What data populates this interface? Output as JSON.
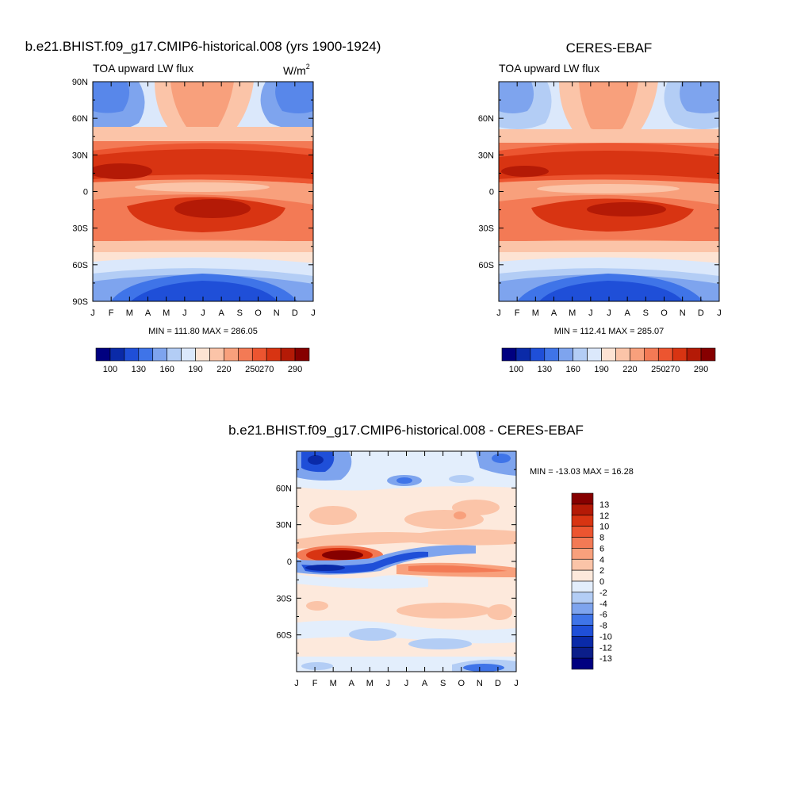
{
  "chart_data": [
    {
      "type": "heatmap",
      "title": "b.e21.BHIST.f09_g17.CMIP6-historical.008 (yrs 1900-1924)",
      "subtitle_left": "TOA upward LW flux",
      "units": "W/m",
      "units_sup": "2",
      "x_ticks": [
        "J",
        "F",
        "M",
        "A",
        "M",
        "J",
        "J",
        "A",
        "S",
        "O",
        "N",
        "D",
        "J"
      ],
      "y_ticks": [
        "90N",
        "60N",
        "30N",
        "0",
        "30S",
        "60S",
        "90S"
      ],
      "y_tick_values": [
        90,
        60,
        30,
        0,
        -30,
        -60,
        -90
      ],
      "xlim": [
        0,
        12
      ],
      "ylim": [
        -90,
        90
      ],
      "stats": "MIN = 111.80 MAX = 286.05",
      "colorbar": {
        "orientation": "horizontal",
        "colors": [
          "#000080",
          "#0a2aa8",
          "#1f4fd8",
          "#3f74e8",
          "#7ea4ee",
          "#b3cdf5",
          "#dbe8fb",
          "#fde3d3",
          "#fbc4a8",
          "#f8a07c",
          "#f37a55",
          "#ec5530",
          "#d83412",
          "#b41a06",
          "#860000"
        ],
        "labels": [
          "100",
          "130",
          "160",
          "190",
          "220",
          "250",
          "270",
          "290"
        ],
        "label_after_index": [
          0,
          2,
          4,
          6,
          8,
          10,
          11,
          13
        ]
      }
    },
    {
      "type": "heatmap",
      "title": "CERES-EBAF",
      "subtitle_left": "TOA upward LW flux",
      "x_ticks": [
        "J",
        "F",
        "M",
        "A",
        "M",
        "J",
        "J",
        "A",
        "S",
        "O",
        "N",
        "D",
        "J"
      ],
      "y_ticks": [
        "60N",
        "30N",
        "0",
        "30S",
        "60S"
      ],
      "y_tick_values": [
        60,
        30,
        0,
        -30,
        -60
      ],
      "xlim": [
        0,
        12
      ],
      "ylim": [
        -90,
        90
      ],
      "stats": "MIN = 112.41 MAX = 285.07",
      "colorbar": {
        "orientation": "horizontal",
        "colors": [
          "#000080",
          "#0a2aa8",
          "#1f4fd8",
          "#3f74e8",
          "#7ea4ee",
          "#b3cdf5",
          "#dbe8fb",
          "#fde3d3",
          "#fbc4a8",
          "#f8a07c",
          "#f37a55",
          "#ec5530",
          "#d83412",
          "#b41a06",
          "#860000"
        ],
        "labels": [
          "100",
          "130",
          "160",
          "190",
          "220",
          "250",
          "270",
          "290"
        ],
        "label_after_index": [
          0,
          2,
          4,
          6,
          8,
          10,
          11,
          13
        ]
      }
    },
    {
      "type": "heatmap",
      "title": "b.e21.BHIST.f09_g17.CMIP6-historical.008 - CERES-EBAF",
      "x_ticks": [
        "J",
        "F",
        "M",
        "A",
        "M",
        "J",
        "J",
        "A",
        "S",
        "O",
        "N",
        "D",
        "J"
      ],
      "y_ticks": [
        "60N",
        "30N",
        "0",
        "30S",
        "60S"
      ],
      "y_tick_values": [
        60,
        30,
        0,
        -30,
        -60
      ],
      "xlim": [
        0,
        12
      ],
      "ylim": [
        -90,
        90
      ],
      "stats": "MIN = -13.03 MAX =  16.28",
      "colorbar": {
        "orientation": "vertical",
        "colors": [
          "#860000",
          "#b41a06",
          "#d83412",
          "#ec5530",
          "#f37a55",
          "#f8a07c",
          "#fbc4a8",
          "#fde9dc",
          "#e3eefc",
          "#b3cdf5",
          "#7ea4ee",
          "#3f74e8",
          "#1f4fd8",
          "#0a2aa8",
          "#0b1e8a",
          "#000080"
        ],
        "labels": [
          "13",
          "12",
          "10",
          "8",
          "6",
          "4",
          "2",
          "0",
          "-2",
          "-4",
          "-6",
          "-8",
          "-10",
          "-12",
          "-13"
        ]
      }
    }
  ]
}
